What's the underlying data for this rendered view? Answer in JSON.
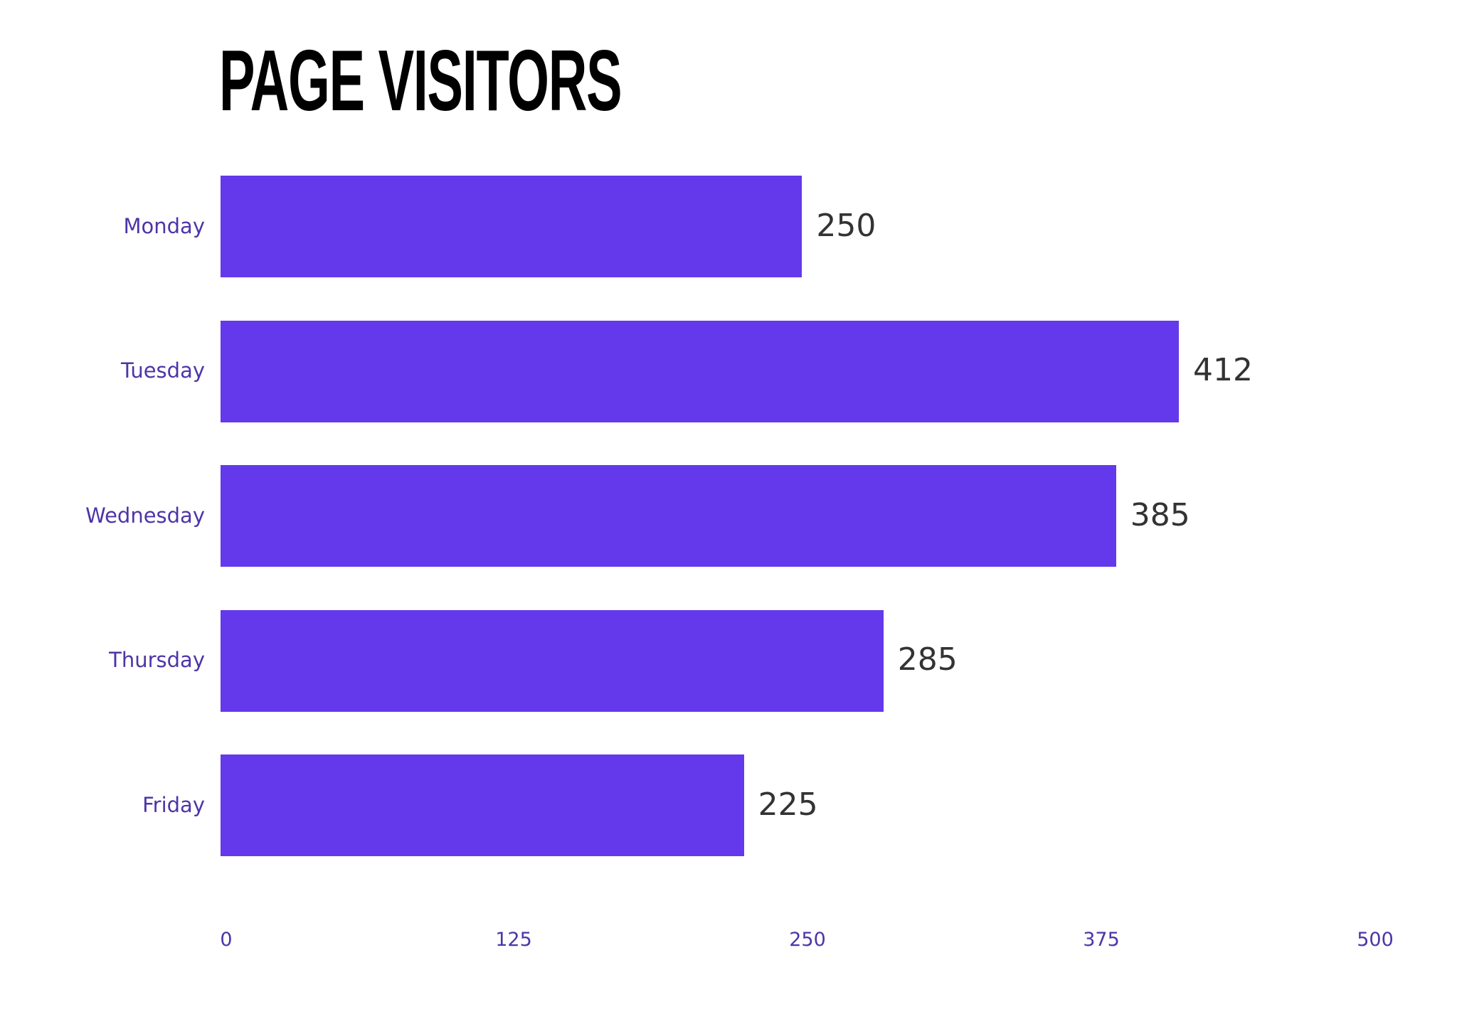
{
  "title": "PAGE VISITORS",
  "colors": {
    "bar": "#6339eb",
    "label": "#4d35a8",
    "value": "#333333",
    "title": "#000000"
  },
  "chart_data": {
    "type": "bar",
    "orientation": "horizontal",
    "title": "PAGE VISITORS",
    "categories": [
      "Monday",
      "Tuesday",
      "Wednesday",
      "Thursday",
      "Friday"
    ],
    "values": [
      250,
      412,
      385,
      285,
      225
    ],
    "value_labels": [
      "250",
      "412",
      "385",
      "285",
      "225"
    ],
    "xlabel": "",
    "ylabel": "",
    "xlim": [
      0,
      500
    ],
    "xticks": [
      "0",
      "125",
      "250",
      "375",
      "500"
    ],
    "grid": false,
    "legend": null
  }
}
